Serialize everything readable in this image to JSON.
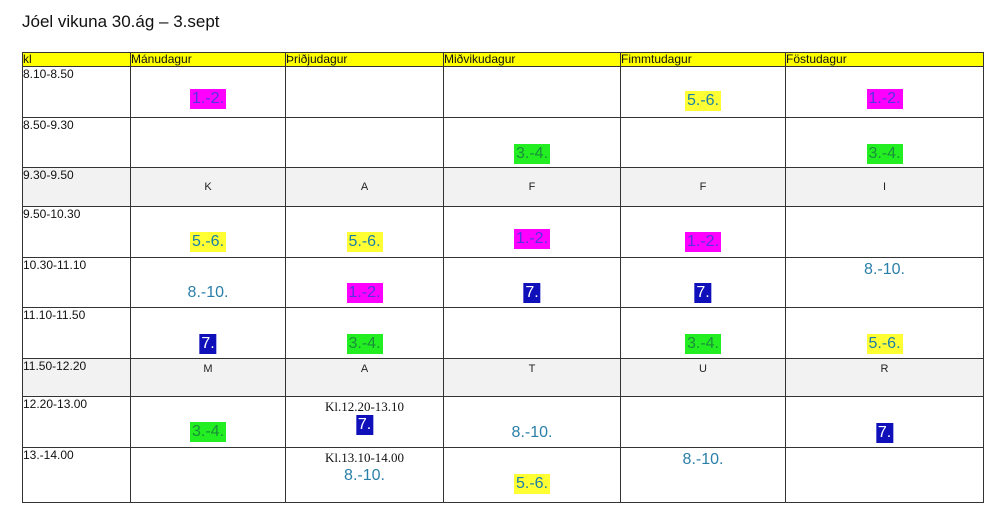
{
  "title": "Jóel vikuna 30.ág – 3.sept",
  "header": {
    "time": "kl",
    "days": [
      "Mánudagur",
      "Þriðjudagur",
      "Miðvikudagur",
      "Fimmtudagur",
      "Föstudagur"
    ]
  },
  "rows": [
    {
      "time": "8.10-8.50",
      "cells": [
        "1.-2.",
        "",
        "",
        "5.-6.",
        "1.-2."
      ]
    },
    {
      "time": "8.50-9.30",
      "cells": [
        "",
        "",
        "3.-4.",
        "",
        "3.-4."
      ]
    },
    {
      "time": "9.30-9.50",
      "cells": [
        "K",
        "A",
        "F",
        "F",
        "I"
      ]
    },
    {
      "time": "9.50-10.30",
      "cells": [
        "5.-6.",
        "5.-6.",
        "1.-2.",
        "1.-2.",
        ""
      ]
    },
    {
      "time": "10.30-11.10",
      "cells": [
        "8.-10.",
        "1.-2.",
        "7.",
        "7.",
        "8.-10."
      ]
    },
    {
      "time": "11.10-11.50",
      "cells": [
        "7.",
        "3.-4.",
        "",
        "3.-4.",
        "5.-6."
      ]
    },
    {
      "time": "11.50-12.20",
      "cells": [
        "M",
        "A",
        "T",
        "U",
        "R"
      ]
    },
    {
      "time": "12.20-13.00",
      "cells": [
        "3.-4.",
        "7.",
        "8.-10.",
        "",
        "7."
      ]
    },
    {
      "time": "13.-14.00",
      "cells": [
        "",
        "8.-10.",
        "5.-6.",
        "8.-10.",
        ""
      ]
    }
  ],
  "notes": {
    "tue_1220": "Kl.12.20-13.10",
    "tue_1300": "Kl.13.10-14.00"
  },
  "colors": {
    "header": "#ffff00",
    "break_row": "#f2f2f2",
    "pink": "#ff00ff",
    "green": "#22ee22",
    "yellow": "#ffff33",
    "blue": "#1010bb"
  }
}
